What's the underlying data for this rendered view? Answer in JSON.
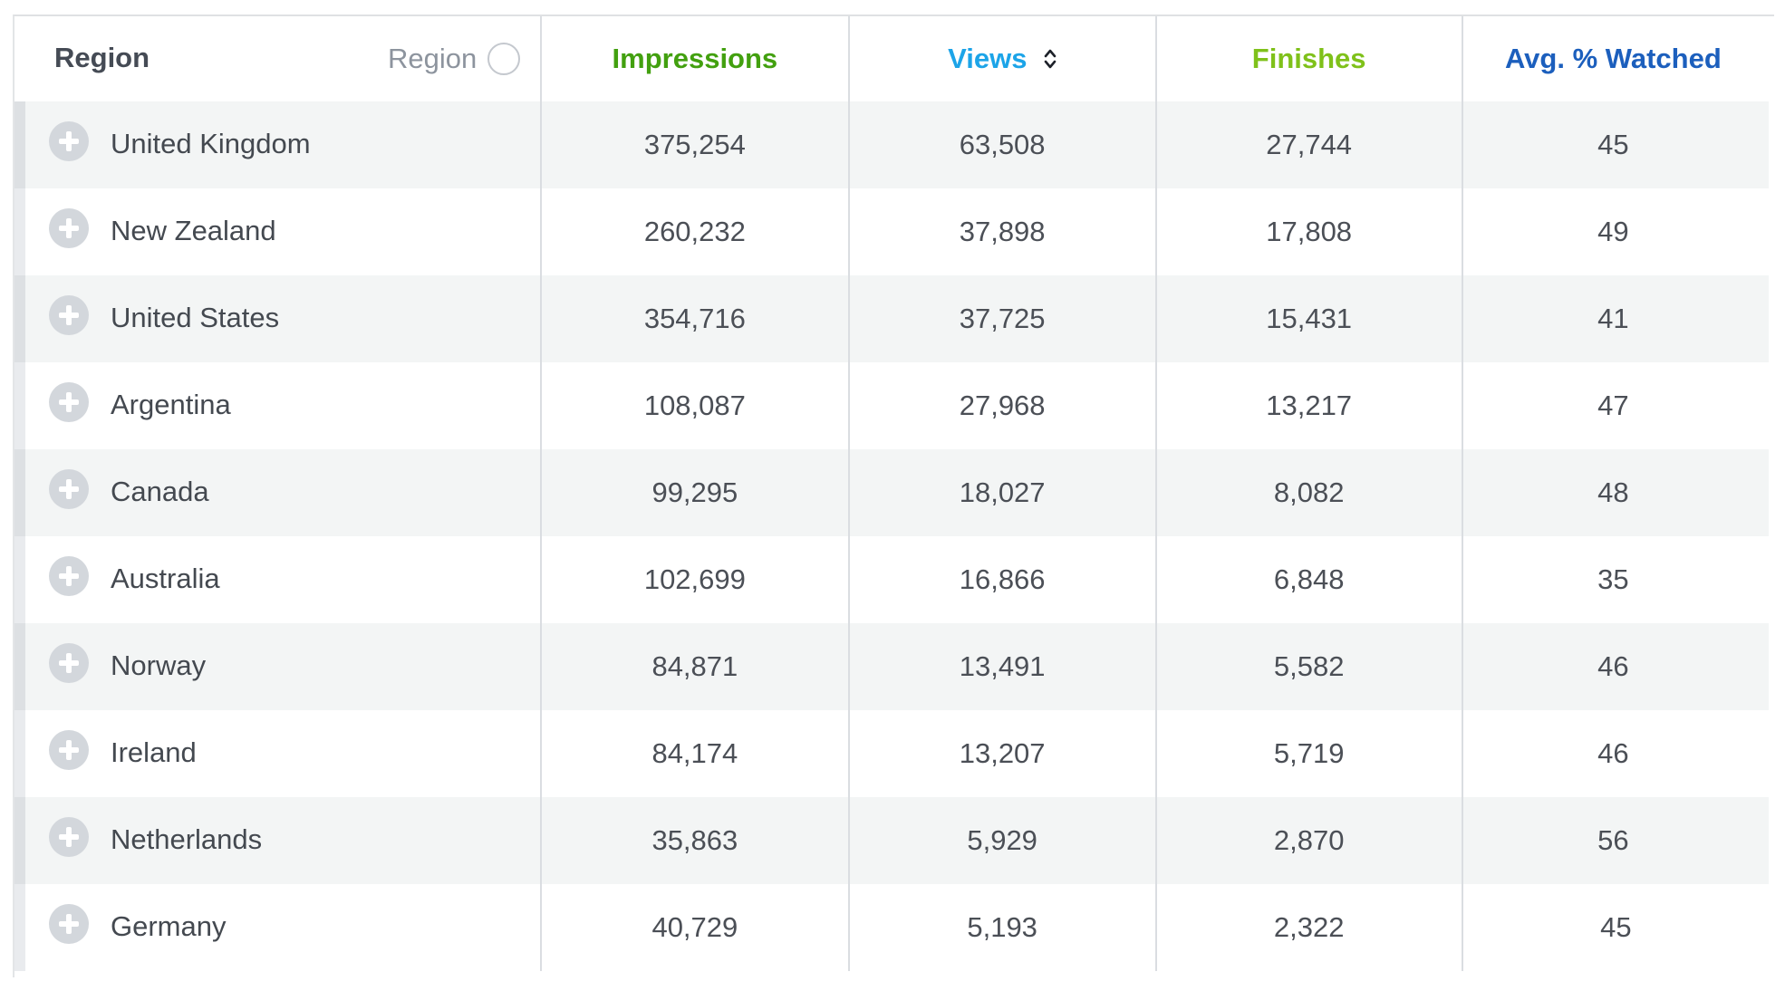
{
  "header": {
    "region_title": "Region",
    "region_filter_label": "Region",
    "impressions": "Impressions",
    "views": "Views",
    "finishes": "Finishes",
    "avg_watched": "Avg. % Watched"
  },
  "colors": {
    "impressions": "#42a00f",
    "views": "#1ca4e8",
    "finishes": "#7fc11a",
    "avg_watched": "#1c5fbd"
  },
  "rows": [
    {
      "region": "United Kingdom",
      "impressions": "375,254",
      "views": "63,508",
      "finishes": "27,744",
      "avg_watched": "45"
    },
    {
      "region": "New Zealand",
      "impressions": "260,232",
      "views": "37,898",
      "finishes": "17,808",
      "avg_watched": "49"
    },
    {
      "region": "United States",
      "impressions": "354,716",
      "views": "37,725",
      "finishes": "15,431",
      "avg_watched": "41"
    },
    {
      "region": "Argentina",
      "impressions": "108,087",
      "views": "27,968",
      "finishes": "13,217",
      "avg_watched": "47"
    },
    {
      "region": "Canada",
      "impressions": "99,295",
      "views": "18,027",
      "finishes": "8,082",
      "avg_watched": "48"
    },
    {
      "region": "Australia",
      "impressions": "102,699",
      "views": "16,866",
      "finishes": "6,848",
      "avg_watched": "35"
    },
    {
      "region": "Norway",
      "impressions": "84,871",
      "views": "13,491",
      "finishes": "5,582",
      "avg_watched": "46"
    },
    {
      "region": "Ireland",
      "impressions": "84,174",
      "views": "13,207",
      "finishes": "5,719",
      "avg_watched": "46"
    },
    {
      "region": "Netherlands",
      "impressions": "35,863",
      "views": "5,929",
      "finishes": "2,870",
      "avg_watched": "56"
    },
    {
      "region": "Germany",
      "impressions": "40,729",
      "views": "5,193",
      "finishes": "2,322",
      "avg_watched": "45"
    }
  ]
}
